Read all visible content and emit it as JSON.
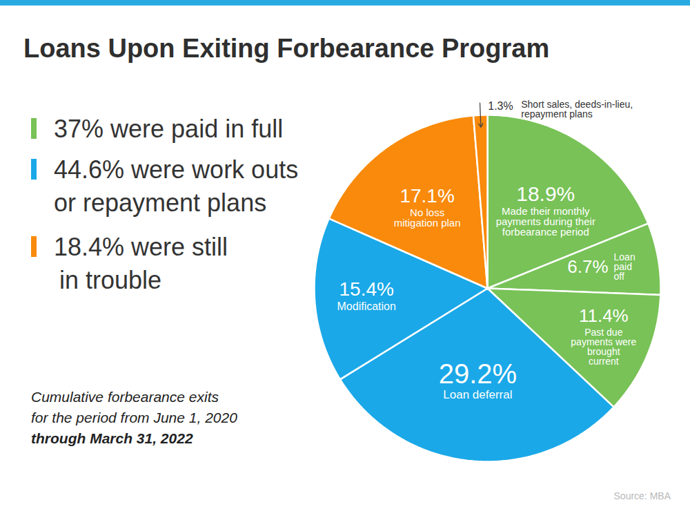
{
  "chart_data": {
    "type": "pie",
    "title": "Loans Upon Exiting Forbearance Program",
    "categories": [
      "Made their monthly payments during their forbearance period",
      "Loan paid off",
      "Past due payments were brought current",
      "Loan deferral",
      "Modification",
      "No loss mitigation plan",
      "Short sales, deeds-in-lieu, repayment plans"
    ],
    "values": [
      18.9,
      6.7,
      11.4,
      29.2,
      15.4,
      17.1,
      1.3
    ],
    "value_labels": [
      "18.9%",
      "6.7%",
      "11.4%",
      "29.2%",
      "15.4%",
      "17.1%",
      "1.3%"
    ],
    "colors": [
      "#78c257",
      "#78c257",
      "#78c257",
      "#1aa8e8",
      "#1aa8e8",
      "#f98a0b",
      "#f98a0b"
    ],
    "data_labels": true,
    "groups": [
      {
        "label": [
          "37% were paid in full"
        ],
        "color": "#78c257"
      },
      {
        "label": [
          "44.6% were work outs",
          "or repayment plans"
        ],
        "color": "#1aa8e8"
      },
      {
        "label": [
          "18.4% were still",
          "in trouble"
        ],
        "color": "#f98a0b"
      }
    ],
    "caption": [
      "Cumulative forbearance exits",
      "for the period from June 1, 2020",
      "through March 31, 2022"
    ],
    "source": "Source: MBA"
  }
}
